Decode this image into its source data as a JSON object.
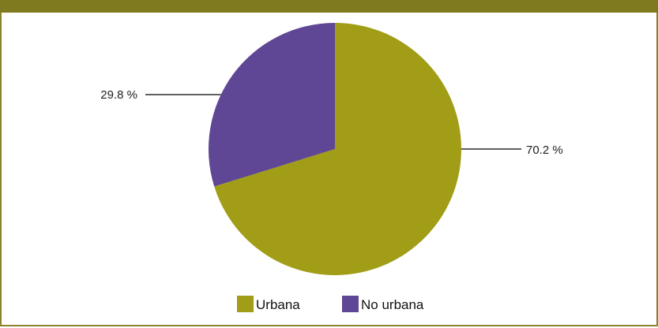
{
  "chart_data": {
    "type": "pie",
    "title": "",
    "slices": [
      {
        "label": "Urbana",
        "value": 70.2,
        "display": "70.2 %",
        "color": "#a19d17"
      },
      {
        "label": "No urbana",
        "value": 29.8,
        "display": "29.8 %",
        "color": "#5f4795"
      }
    ],
    "legend_position": "bottom",
    "start_angle": "12 o'clock",
    "direction": "clockwise"
  },
  "colors": {
    "frame": "#8a842b",
    "header": "#7f7a1f"
  }
}
